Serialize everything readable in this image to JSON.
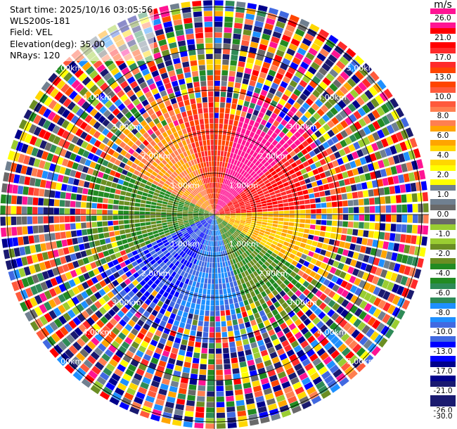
{
  "header": {
    "start_time": "Start time: 2025/10/16 03:05:56",
    "site": "WLS200s-181",
    "field": "Field: VEL",
    "elevation": "Elevation(deg): 35.00",
    "nrays": "NRays: 120"
  },
  "colorbar": {
    "unit": "m/s",
    "ticks": [
      "26.0",
      "21.0",
      "17.0",
      "13.0",
      "10.0",
      "8.0",
      "6.0",
      "4.0",
      "2.0",
      "1.0",
      "0.0",
      "-1.0",
      "-2.0",
      "-4.0",
      "-6.0",
      "-8.0",
      "-10.0",
      "-13.0",
      "-17.0",
      "-21.0",
      "-26.0",
      "-30.0"
    ],
    "colors": [
      "#ff1493",
      "#ff0000",
      "#ff2a2a",
      "#ff4500",
      "#ff5a3c",
      "#ff7f50",
      "#ffa500",
      "#ffd700",
      "#ffff00",
      "#708090",
      "#696969",
      "#9acd32",
      "#6b8e23",
      "#228b22",
      "#2e8b57",
      "#1e90ff",
      "#4169e1",
      "#0000ff",
      "#00008b",
      "#191970",
      "#1a1a6e"
    ]
  },
  "range_rings": {
    "labels": [
      "1.00km",
      "2.00km",
      "3.00km",
      "4.00km",
      "5.00km"
    ]
  },
  "chart_data": {
    "type": "heatmap",
    "projection": "PPI polar",
    "field": "VEL",
    "units": "m/s",
    "nrays": 120,
    "range_rings_km": [
      1,
      2,
      3,
      4,
      5
    ],
    "value_range": [
      -30,
      26
    ],
    "inner_pattern": [
      {
        "sector": "north-northeast",
        "velocity": 26
      },
      {
        "sector": "east-northeast",
        "velocity": 17
      },
      {
        "sector": "east",
        "velocity": 4
      },
      {
        "sector": "south-east",
        "velocity": -4
      },
      {
        "sector": "south",
        "velocity": -10
      },
      {
        "sector": "south-west",
        "velocity": -13
      },
      {
        "sector": "west",
        "velocity": -4
      },
      {
        "sector": "north-west",
        "velocity": 6
      },
      {
        "sector": "north",
        "velocity": 13
      }
    ]
  }
}
